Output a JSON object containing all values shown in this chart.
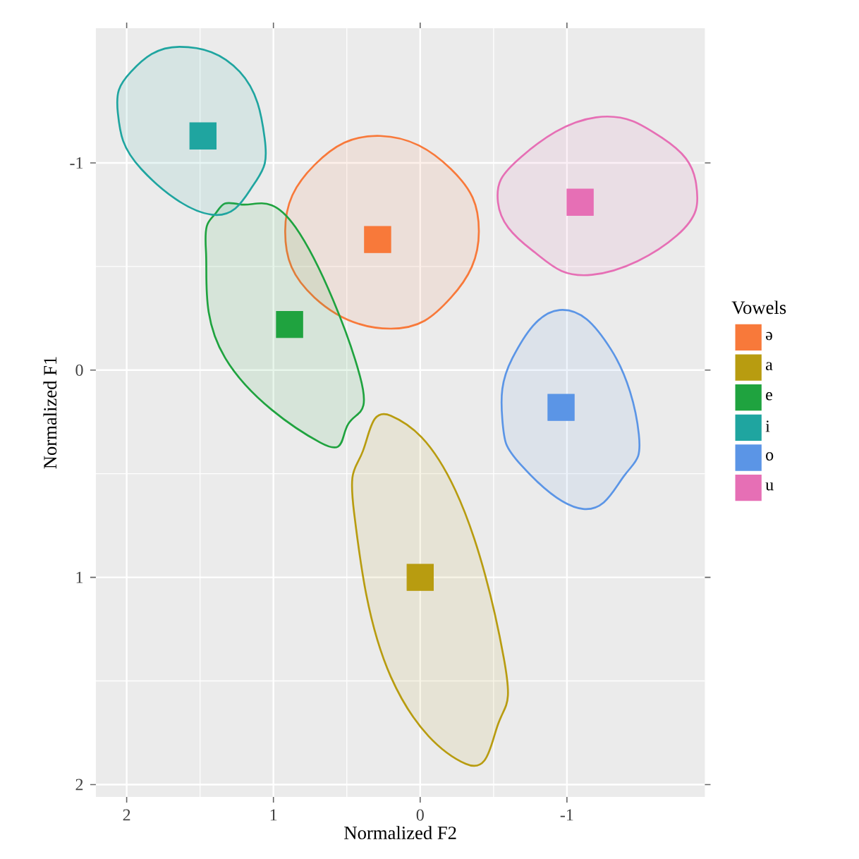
{
  "chart_data": {
    "type": "scatter",
    "xlabel": "Normalized F2",
    "ylabel": "Normalized F1",
    "legend_title": "Vowels",
    "xlim": [
      2.21,
      -1.94
    ],
    "ylim": [
      2.06,
      -1.65
    ],
    "xticks": [
      2,
      1,
      0,
      -1
    ],
    "yticks": [
      -1,
      0,
      1,
      2
    ],
    "grid": true,
    "legend": "right",
    "marker": "square",
    "series": [
      {
        "name": "ə",
        "color": "#f8793a",
        "x": [
          0.29
        ],
        "values": [
          -0.63
        ]
      },
      {
        "name": "a",
        "color": "#b89c10",
        "x": [
          0.0
        ],
        "values": [
          1.0
        ]
      },
      {
        "name": "e",
        "color": "#1fa33f",
        "x": [
          0.89
        ],
        "values": [
          -0.22
        ]
      },
      {
        "name": "i",
        "color": "#1fa5a0",
        "x": [
          1.48
        ],
        "values": [
          -1.13
        ]
      },
      {
        "name": "o",
        "color": "#5b95e6",
        "x": [
          -0.96
        ],
        "values": [
          0.18
        ]
      },
      {
        "name": "u",
        "color": "#e66fb5",
        "x": [
          -1.09
        ],
        "values": [
          -0.81
        ]
      },
      {
        "type": "area",
        "marker": "none",
        "color": "#f8793a",
        "x": [
          0.27,
          -0.21,
          -0.4,
          -0.21,
          0.2,
          0.72,
          0.92,
          0.72
        ],
        "values": [
          -1.13,
          -0.97,
          -0.67,
          -0.35,
          -0.2,
          -0.35,
          -0.67,
          -0.99
        ]
      },
      {
        "type": "area",
        "marker": "none",
        "color": "#b89c10",
        "x": [
          0.2,
          -0.24,
          -0.57,
          -0.53,
          -0.31,
          0.2,
          0.45,
          0.39
        ],
        "values": [
          0.22,
          0.58,
          1.39,
          1.71,
          1.9,
          1.48,
          0.69,
          0.39
        ]
      },
      {
        "type": "area",
        "marker": "none",
        "color": "#1fa33f",
        "x": [
          1.23,
          0.85,
          0.41,
          0.49,
          0.68,
          1.33,
          1.46,
          1.39
        ],
        "values": [
          -0.8,
          -0.69,
          0.03,
          0.26,
          0.35,
          -0.06,
          -0.58,
          -0.76
        ]
      },
      {
        "type": "area",
        "marker": "none",
        "color": "#1fa5a0",
        "x": [
          1.64,
          1.23,
          1.06,
          1.13,
          1.42,
          1.9,
          2.06,
          1.97
        ],
        "values": [
          -1.56,
          -1.44,
          -1.12,
          -0.9,
          -0.75,
          -0.97,
          -1.24,
          -1.44
        ]
      },
      {
        "type": "area",
        "marker": "none",
        "color": "#5b95e6",
        "x": [
          -0.95,
          -1.3,
          -1.49,
          -1.39,
          -1.11,
          -0.69,
          -0.56,
          -0.63
        ],
        "values": [
          -0.29,
          -0.1,
          0.31,
          0.51,
          0.67,
          0.46,
          0.24,
          -0.06
        ]
      },
      {
        "type": "area",
        "marker": "none",
        "color": "#e66fb5",
        "x": [
          -1.2,
          -1.65,
          -1.88,
          -1.75,
          -1.17,
          -0.76,
          -0.53,
          -0.69
        ],
        "values": [
          -1.22,
          -1.12,
          -0.9,
          -0.65,
          -0.46,
          -0.58,
          -0.81,
          -1.03
        ]
      }
    ]
  }
}
